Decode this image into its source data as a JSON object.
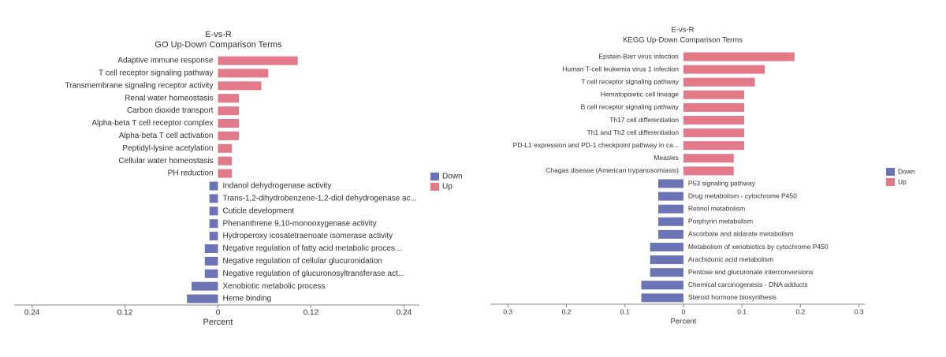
{
  "chart_data": [
    {
      "type": "bar",
      "title": "E-vs-R",
      "subtitle": "GO Up-Down Comparison Terms",
      "xlabel": "Percent",
      "categories": [
        "Adaptive immune response",
        "T cell receptor signaling pathway",
        "Transmembrane signaling receptor activity",
        "Renal water homeostasis",
        "Carbon dioxide transport",
        "Alpha-beta T cell receptor complex",
        "Alpha-beta T cell activation",
        "Peptidyl-lysine acetylation",
        "Cellular water homeostasis",
        "PH reduction",
        "Indanol dehydrogenase activity",
        "Trans-1,2-dihydrobenzene-1,2-diol dehydrogenase ac...",
        "Cuticle development",
        "Phenanthrene 9,10-monooxygenase activity",
        "Hydroperoxy icosatetraenoate isomerase activity",
        "Negative regulation of fatty acid metabolic proces...",
        "Negative regulation of cellular glucuronidation",
        "Negative regulation of glucuronosyltransferase act...",
        "Xenobiotic metabolic process",
        "Heme binding"
      ],
      "series": [
        {
          "name": "Down",
          "color": "#6b74b4",
          "values": [
            null,
            null,
            null,
            null,
            null,
            null,
            null,
            null,
            null,
            null,
            -0.011,
            -0.011,
            -0.011,
            -0.011,
            -0.011,
            -0.017,
            -0.017,
            -0.017,
            -0.034,
            -0.04
          ]
        },
        {
          "name": "Up",
          "color": "#e27a89",
          "values": [
            0.103,
            0.065,
            0.056,
            0.027,
            0.027,
            0.027,
            0.027,
            0.018,
            0.018,
            0.018,
            null,
            null,
            null,
            null,
            null,
            null,
            null,
            null,
            null,
            null
          ]
        }
      ],
      "xlim": [
        -0.263,
        0.26
      ],
      "xticks": [
        {
          "value": -0.24,
          "label": "0.24"
        },
        {
          "value": -0.12,
          "label": "0.12"
        },
        0,
        0.12,
        0.24
      ],
      "legend": "right"
    },
    {
      "type": "bar",
      "title": "E-vs-R",
      "subtitle": "KEGG Up-Down Comparison Terms",
      "xlabel": "Percent",
      "categories": [
        "Epstein-Barr virus infection",
        "Human T-cell leukemia virus 1 infection",
        "T cell receptor signaling pathway",
        "Hematopoietic cell lineage",
        "B cell receptor signaling pathway",
        "Th17 cell differentiation",
        "Th1 and Th2 cell differentiation",
        "PD-L1 expression and PD-1 checkpoint pathway in ca...",
        "Measles",
        "Chagas disease (American trypanosomiasis)",
        "P53 signaling pathway",
        "Drug metabolism - cytochrome P450",
        "Retinol metabolism",
        "Porphyrin metabolism",
        "Ascorbate and aldarate metabolism",
        "Metabolism of xenobiotics by cytochrome P450",
        "Arachidonic acid metabolism",
        "Pentose and glucuronate interconversions",
        "Chemical carcinogenesis - DNA adducts",
        "Steroid hormone biosynthesis"
      ],
      "series": [
        {
          "name": "Down",
          "color": "#6b74b4",
          "values": [
            null,
            null,
            null,
            null,
            null,
            null,
            null,
            null,
            null,
            null,
            -0.043,
            -0.043,
            -0.043,
            -0.043,
            -0.043,
            -0.057,
            -0.057,
            -0.057,
            -0.072,
            -0.072
          ]
        },
        {
          "name": "Up",
          "color": "#e27a89",
          "values": [
            0.19,
            0.139,
            0.122,
            0.104,
            0.104,
            0.104,
            0.104,
            0.104,
            0.086,
            0.086,
            null,
            null,
            null,
            null,
            null,
            null,
            null,
            null,
            null,
            null
          ]
        }
      ],
      "xlim": [
        -0.33,
        0.31
      ],
      "xticks": [
        {
          "value": -0.3,
          "label": "0.3"
        },
        {
          "value": -0.2,
          "label": "0.2"
        },
        {
          "value": -0.1,
          "label": "0.1"
        },
        0,
        0.1,
        0.2,
        0.3
      ],
      "legend": "right"
    }
  ]
}
